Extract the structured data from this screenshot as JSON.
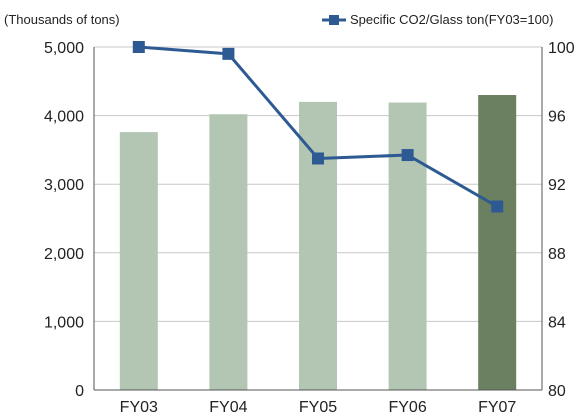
{
  "chart_data": {
    "type": "bar",
    "units_label": "(Thousands of tons)",
    "categories": [
      "FY03",
      "FY04",
      "FY05",
      "FY06",
      "FY07"
    ],
    "series": [
      {
        "type": "bar",
        "axis": "left",
        "values": [
          3760,
          4020,
          4200,
          4190,
          4300
        ],
        "colors": [
          "#b3c6b3",
          "#b3c6b3",
          "#b3c6b3",
          "#b3c6b3",
          "#6a8060"
        ]
      },
      {
        "type": "line",
        "axis": "right",
        "name": "Specific CO2/Glass ton(FY03=100)",
        "values": [
          100,
          99.6,
          93.5,
          93.7,
          90.7
        ],
        "color": "#2e5a93"
      }
    ],
    "y_left": {
      "min": 0,
      "max": 5000,
      "ticks": [
        "0",
        "1,000",
        "2,000",
        "3,000",
        "4,000",
        "5,000"
      ]
    },
    "y_right": {
      "min": 80,
      "max": 100,
      "ticks": [
        "80",
        "84",
        "88",
        "92",
        "96",
        "100"
      ]
    },
    "legend": {
      "label": "Specific CO2/Glass ton(FY03=100)",
      "position": "top-right"
    },
    "grid": true
  }
}
